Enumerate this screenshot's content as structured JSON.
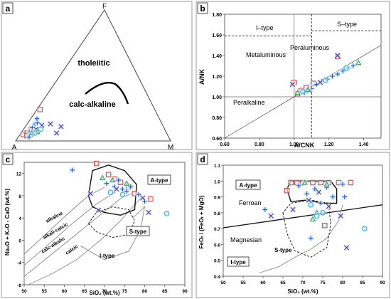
{
  "colors": {
    "frame": "#9a9a9a",
    "axis": "#444444",
    "label_box": "#ffffff",
    "series_square": "#d0413c",
    "series_triangle": "#3a9a44",
    "series_plus": "#1f4fd6",
    "series_cross": "#5a2aa0",
    "series_circle": "#2aa8e0",
    "halo": "#d6ecfa"
  },
  "chart_data": [
    {
      "panel": "a",
      "type": "ternary",
      "apices": {
        "top": "F",
        "left": "A",
        "right": "M"
      },
      "fields": [
        "tholeiitic",
        "calc-alkaline"
      ],
      "points": [
        {
          "marker": "square",
          "a": 0.93,
          "f": 0.05
        },
        {
          "marker": "square",
          "a": 0.9,
          "f": 0.06
        },
        {
          "marker": "square",
          "a": 0.86,
          "f": 0.09
        },
        {
          "marker": "square",
          "a": 0.74,
          "f": 0.24
        },
        {
          "marker": "square",
          "a": 0.91,
          "f": 0.04
        },
        {
          "marker": "plus",
          "a": 0.88,
          "f": 0.07
        },
        {
          "marker": "plus",
          "a": 0.85,
          "f": 0.1
        },
        {
          "marker": "plus",
          "a": 0.82,
          "f": 0.13
        },
        {
          "marker": "plus",
          "a": 0.8,
          "f": 0.14
        },
        {
          "marker": "plus",
          "a": 0.87,
          "f": 0.05
        },
        {
          "marker": "plus",
          "a": 0.84,
          "f": 0.08
        },
        {
          "marker": "plus",
          "a": 0.79,
          "f": 0.17
        },
        {
          "marker": "plus",
          "a": 0.9,
          "f": 0.03
        },
        {
          "marker": "cross",
          "a": 0.83,
          "f": 0.09
        },
        {
          "marker": "cross",
          "a": 0.78,
          "f": 0.12
        },
        {
          "marker": "cross",
          "a": 0.72,
          "f": 0.13
        },
        {
          "marker": "cross",
          "a": 0.66,
          "f": 0.11
        },
        {
          "marker": "cross",
          "a": 0.71,
          "f": 0.06
        },
        {
          "marker": "triangle",
          "a": 0.87,
          "f": 0.06
        },
        {
          "marker": "triangle",
          "a": 0.83,
          "f": 0.07
        },
        {
          "marker": "circle",
          "a": 0.85,
          "f": 0.06
        },
        {
          "marker": "circle",
          "a": 0.8,
          "f": 0.09
        }
      ]
    },
    {
      "panel": "b",
      "type": "scatter",
      "xlabel": "A/CNK",
      "ylabel": "A/NK",
      "xlim": [
        0.6,
        1.5
      ],
      "ylim": [
        0.6,
        1.8
      ],
      "xticks": [
        "0.60",
        "0.80",
        "1.00",
        "1.20",
        "1.40"
      ],
      "yticks": [
        "0.60",
        "0.80",
        "1.00",
        "1.20",
        "1.40",
        "1.60",
        "1.80"
      ],
      "fields": [
        "Metaluminous",
        "Peraluminous",
        "Peralkaline"
      ],
      "classes": [
        "I–type",
        "S–type"
      ],
      "points": [
        {
          "marker": "square",
          "x": 1.0,
          "y": 1.14
        },
        {
          "marker": "square",
          "x": 1.04,
          "y": 1.06
        },
        {
          "marker": "square",
          "x": 1.07,
          "y": 1.09
        },
        {
          "marker": "square",
          "x": 1.11,
          "y": 1.13
        },
        {
          "marker": "square",
          "x": 1.02,
          "y": 1.03
        },
        {
          "marker": "square",
          "x": 1.25,
          "y": 1.39
        },
        {
          "marker": "plus",
          "x": 1.06,
          "y": 1.04
        },
        {
          "marker": "plus",
          "x": 1.1,
          "y": 1.08
        },
        {
          "marker": "plus",
          "x": 1.13,
          "y": 1.12
        },
        {
          "marker": "plus",
          "x": 1.16,
          "y": 1.15
        },
        {
          "marker": "plus",
          "x": 1.19,
          "y": 1.17
        },
        {
          "marker": "plus",
          "x": 1.22,
          "y": 1.2
        },
        {
          "marker": "plus",
          "x": 1.25,
          "y": 1.22
        },
        {
          "marker": "plus",
          "x": 1.28,
          "y": 1.25
        },
        {
          "marker": "plus",
          "x": 1.31,
          "y": 1.28
        },
        {
          "marker": "plus",
          "x": 1.34,
          "y": 1.3
        },
        {
          "marker": "plus",
          "x": 1.08,
          "y": 1.07
        },
        {
          "marker": "cross",
          "x": 0.99,
          "y": 1.12
        },
        {
          "marker": "cross",
          "x": 1.09,
          "y": 1.06
        },
        {
          "marker": "cross",
          "x": 1.25,
          "y": 1.4
        },
        {
          "marker": "cross",
          "x": 1.15,
          "y": 1.14
        },
        {
          "marker": "triangle",
          "x": 1.02,
          "y": 1.04
        },
        {
          "marker": "triangle",
          "x": 1.37,
          "y": 1.33
        },
        {
          "marker": "triangle",
          "x": 1.08,
          "y": 1.07
        },
        {
          "marker": "circle",
          "x": 1.05,
          "y": 1.05
        },
        {
          "marker": "circle",
          "x": 1.18,
          "y": 1.16
        },
        {
          "marker": "circle",
          "x": 1.3,
          "y": 1.28
        }
      ]
    },
    {
      "panel": "c",
      "type": "scatter",
      "xlabel": "SiO₂ (wt.%)",
      "ylabel": "Na₂O + K₂O - CaO (wt.%)",
      "xlim": [
        50,
        90
      ],
      "ylim": [
        -8,
        14
      ],
      "xticks": [
        "50",
        "55",
        "60",
        "65",
        "70",
        "75",
        "80",
        "85",
        "90"
      ],
      "yticks": [
        "-8",
        "-4",
        "0",
        "4",
        "8",
        "12"
      ],
      "fields": [
        "A-type",
        "S-type",
        "I-type"
      ],
      "series_boundaries": [
        "alkaline",
        "alkali-calcic",
        "calc-alkalic",
        "calcic"
      ],
      "points": [
        {
          "marker": "square",
          "x": 68.0,
          "y": 13.8
        },
        {
          "marker": "square",
          "x": 71.0,
          "y": 11.8
        },
        {
          "marker": "square",
          "x": 72.5,
          "y": 11.0
        },
        {
          "marker": "square",
          "x": 74.0,
          "y": 10.4
        },
        {
          "marker": "square",
          "x": 76.0,
          "y": 9.6
        },
        {
          "marker": "square",
          "x": 77.5,
          "y": 8.4
        },
        {
          "marker": "square",
          "x": 81.5,
          "y": 7.4
        },
        {
          "marker": "plus",
          "x": 62.0,
          "y": 12.6
        },
        {
          "marker": "plus",
          "x": 70.5,
          "y": 10.2
        },
        {
          "marker": "plus",
          "x": 72.5,
          "y": 9.6
        },
        {
          "marker": "plus",
          "x": 73.5,
          "y": 10.8
        },
        {
          "marker": "plus",
          "x": 74.5,
          "y": 9.2
        },
        {
          "marker": "plus",
          "x": 75.5,
          "y": 8.8
        },
        {
          "marker": "plus",
          "x": 76.5,
          "y": 9.6
        },
        {
          "marker": "plus",
          "x": 78.5,
          "y": 8.2
        },
        {
          "marker": "plus",
          "x": 80.0,
          "y": 7.0
        },
        {
          "marker": "cross",
          "x": 66.5,
          "y": 8.4
        },
        {
          "marker": "cross",
          "x": 68.5,
          "y": 5.4
        },
        {
          "marker": "cross",
          "x": 73.0,
          "y": 9.2
        },
        {
          "marker": "cross",
          "x": 79.5,
          "y": 7.6
        },
        {
          "marker": "cross",
          "x": 81.0,
          "y": 5.0
        },
        {
          "marker": "triangle",
          "x": 69.5,
          "y": 11.2
        },
        {
          "marker": "triangle",
          "x": 72.0,
          "y": 10.8
        },
        {
          "marker": "triangle",
          "x": 75.5,
          "y": 10.2
        },
        {
          "marker": "circle",
          "x": 71.5,
          "y": 8.6
        },
        {
          "marker": "circle",
          "x": 74.5,
          "y": 8.2
        },
        {
          "marker": "circle",
          "x": 85.5,
          "y": 4.8
        }
      ]
    },
    {
      "panel": "d",
      "type": "scatter",
      "xlabel": "SiO₂ (wt.%)",
      "ylabel": "FeOₜ / (FeOₜ + MgO)",
      "xlim": [
        50,
        90
      ],
      "ylim": [
        0.4,
        1.1
      ],
      "xticks": [
        "50",
        "55",
        "60",
        "65",
        "70",
        "75",
        "80",
        "85",
        "90"
      ],
      "yticks": [
        "0.4",
        "0.5",
        "0.6",
        "0.7",
        "0.8",
        "0.9",
        "1.0",
        "1.1"
      ],
      "fields": [
        "A-type",
        "Ferroan",
        "Magnesian",
        "S-type",
        "I-type"
      ],
      "points": [
        {
          "marker": "square",
          "x": 67.0,
          "y": 0.99
        },
        {
          "marker": "square",
          "x": 68.5,
          "y": 0.99
        },
        {
          "marker": "square",
          "x": 70.0,
          "y": 0.99
        },
        {
          "marker": "square",
          "x": 72.5,
          "y": 0.99
        },
        {
          "marker": "square",
          "x": 74.5,
          "y": 0.99
        },
        {
          "marker": "square",
          "x": 76.5,
          "y": 0.99
        },
        {
          "marker": "square",
          "x": 79.0,
          "y": 0.99
        },
        {
          "marker": "square",
          "x": 82.0,
          "y": 0.99
        },
        {
          "marker": "square",
          "x": 66.0,
          "y": 0.94
        },
        {
          "marker": "square",
          "x": 75.5,
          "y": 0.72
        },
        {
          "marker": "plus",
          "x": 69.0,
          "y": 0.97
        },
        {
          "marker": "plus",
          "x": 71.0,
          "y": 0.92
        },
        {
          "marker": "plus",
          "x": 73.0,
          "y": 0.95
        },
        {
          "marker": "plus",
          "x": 74.5,
          "y": 0.86
        },
        {
          "marker": "plus",
          "x": 76.0,
          "y": 0.96
        },
        {
          "marker": "plus",
          "x": 77.5,
          "y": 0.9
        },
        {
          "marker": "plus",
          "x": 80.0,
          "y": 0.98
        },
        {
          "marker": "plus",
          "x": 80.5,
          "y": 0.9
        },
        {
          "marker": "plus",
          "x": 60.5,
          "y": 0.82
        },
        {
          "marker": "plus",
          "x": 72.0,
          "y": 0.64
        },
        {
          "marker": "cross",
          "x": 67.5,
          "y": 0.82
        },
        {
          "marker": "cross",
          "x": 71.5,
          "y": 0.88
        },
        {
          "marker": "cross",
          "x": 74.0,
          "y": 0.93
        },
        {
          "marker": "cross",
          "x": 76.5,
          "y": 0.84
        },
        {
          "marker": "cross",
          "x": 79.5,
          "y": 0.78
        },
        {
          "marker": "cross",
          "x": 81.0,
          "y": 0.58
        },
        {
          "marker": "cross",
          "x": 62.0,
          "y": 0.78
        },
        {
          "marker": "triangle",
          "x": 70.5,
          "y": 0.99
        },
        {
          "marker": "triangle",
          "x": 72.5,
          "y": 0.76
        },
        {
          "marker": "triangle",
          "x": 73.5,
          "y": 0.8
        },
        {
          "marker": "triangle",
          "x": 76.0,
          "y": 0.98
        },
        {
          "marker": "circle",
          "x": 72.0,
          "y": 0.85
        },
        {
          "marker": "circle",
          "x": 73.5,
          "y": 0.78
        },
        {
          "marker": "circle",
          "x": 75.0,
          "y": 0.8
        },
        {
          "marker": "circle",
          "x": 85.5,
          "y": 0.7
        }
      ]
    }
  ]
}
